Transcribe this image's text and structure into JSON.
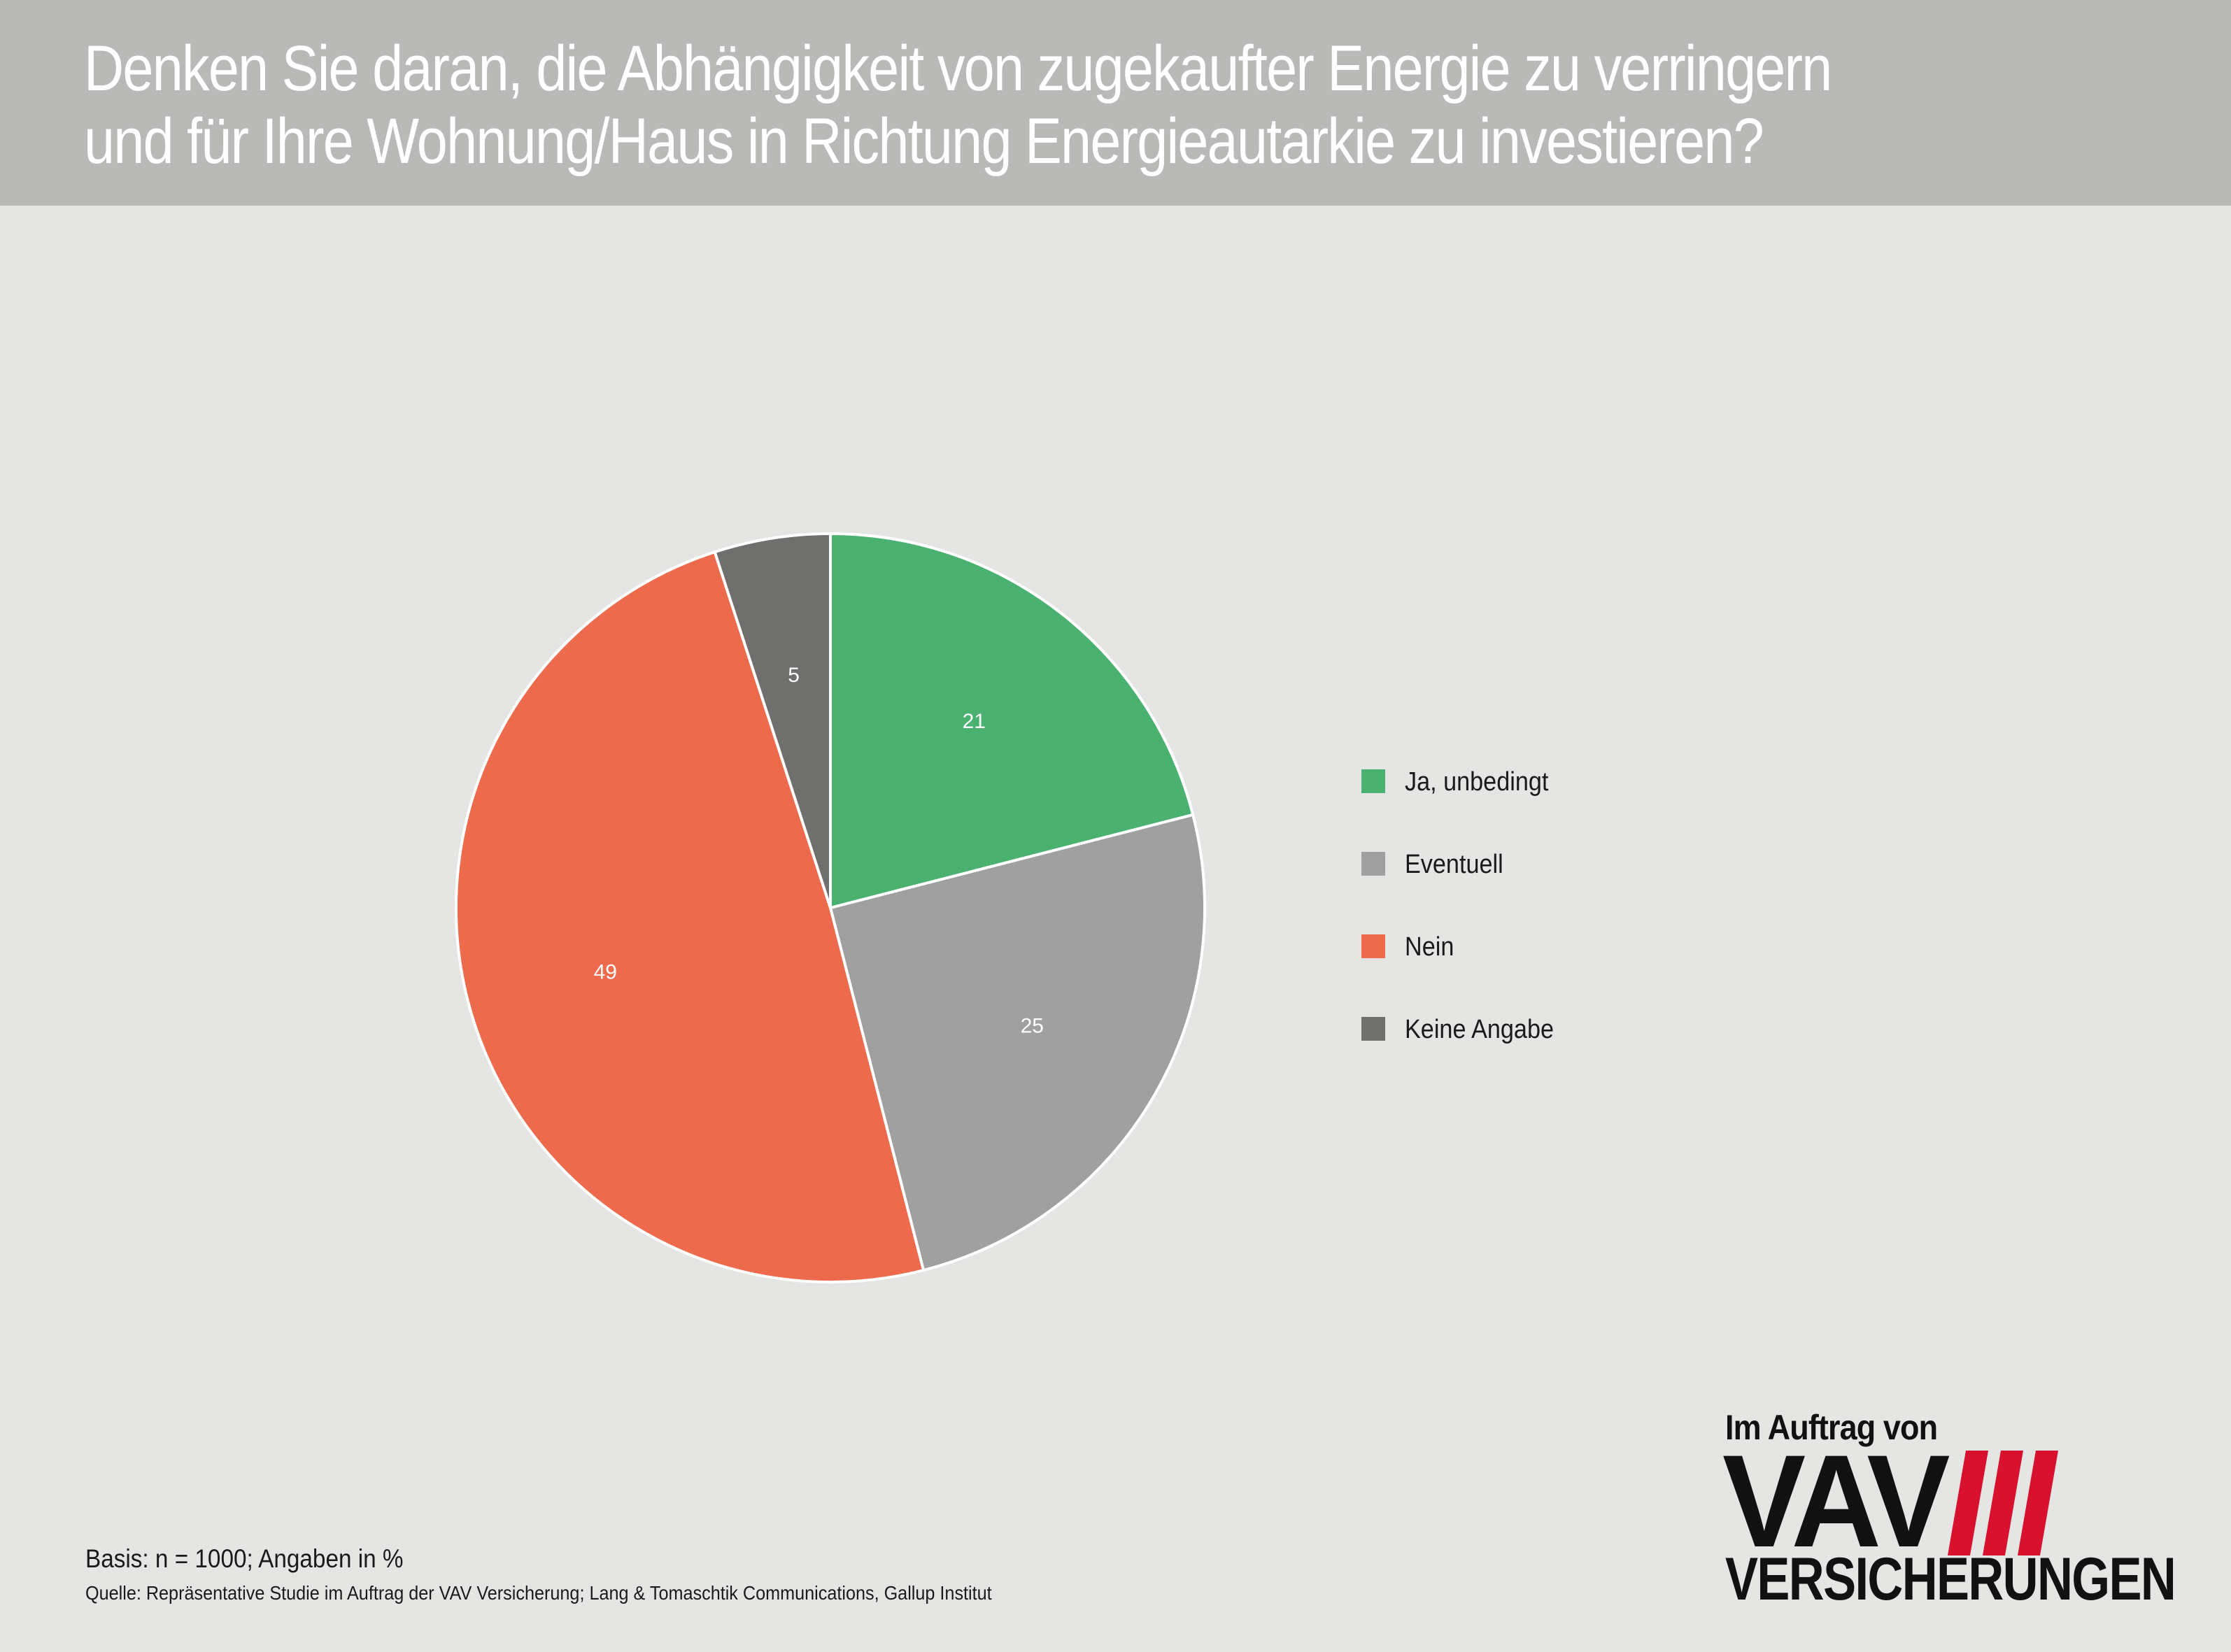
{
  "header": {
    "title_line1": "Denken Sie daran, die Abhängigkeit von zugekaufter Energie zu verringern",
    "title_line2": "und für Ihre Wohnung/Haus in Richtung Energieautarkie zu investieren?"
  },
  "chart_data": {
    "type": "pie",
    "title": "Denken Sie daran, die Abhängigkeit von zugekaufter Energie zu verringern und für Ihre Wohnung/Haus in Richtung Energieautarkie zu investieren?",
    "categories": [
      "Ja, unbedingt",
      "Eventuell",
      "Nein",
      "Keine Angabe"
    ],
    "values": [
      21,
      25,
      49,
      5
    ],
    "colors": [
      "#4bb170",
      "#a0a0a0",
      "#ee6a4c",
      "#6f6f6d"
    ],
    "start_angle": "top, clockwise",
    "legend_position": "right"
  },
  "legend": {
    "items": [
      {
        "label": "Ja, unbedingt",
        "color": "#4bb170"
      },
      {
        "label": "Eventuell",
        "color": "#a0a0a0"
      },
      {
        "label": "Nein",
        "color": "#ee6a4c"
      },
      {
        "label": "Keine Angabe",
        "color": "#6f6f6d"
      }
    ]
  },
  "footer": {
    "basis": "Basis: n = 1000; Angaben in %",
    "source": "Quelle: Repräsentative Studie im Auftrag der VAV Versicherung; Lang & Tomaschtik Communications, Gallup Institut"
  },
  "logo": {
    "top": "Im Auftrag von",
    "main": "VAV",
    "bottom": "VERSICHERUNGEN",
    "accent_color": "#d7112e"
  }
}
